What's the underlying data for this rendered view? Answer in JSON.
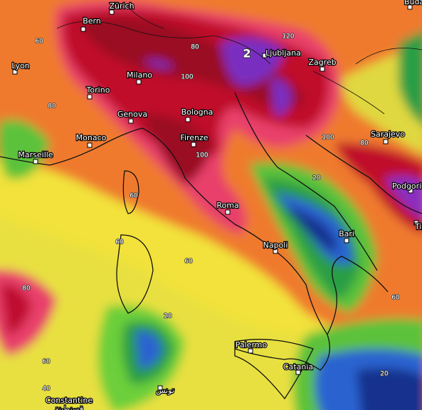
{
  "cities": [
    "Zürich",
    "Bern",
    "Budapes",
    "Lyon",
    "Milano",
    "Torino",
    "Genova",
    "Bologna",
    "Monaco",
    "Marseille",
    "Firenze",
    "Ljubljana",
    "Zagreb",
    "Sarajevo",
    "Podgori",
    "Tir",
    "Roma",
    "Napoli",
    "Bari",
    "Palermo",
    "Catania",
    "Constantine",
    "قسنطينة",
    "تونس"
  ],
  "contour_labels": [
    60,
    80,
    120,
    100,
    80,
    100,
    60,
    60,
    60,
    80,
    20,
    60,
    40,
    20,
    80,
    100,
    60,
    20,
    2
  ]
}
